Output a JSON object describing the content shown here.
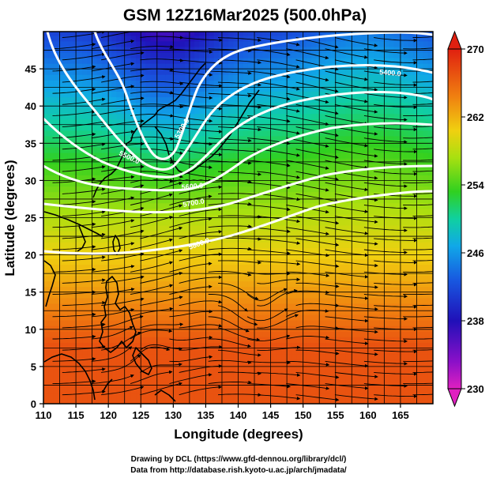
{
  "title": "GSM 12Z16Mar2025 (500.0hPa)",
  "credits": [
    "Drawing by DCL (https://www.gfd-dennou.org/library/dcl/)",
    "Data from http://database.rish.kyoto-u.ac.jp/arch/jmadata/"
  ],
  "map": {
    "xlabel": "Longitude (degrees)",
    "ylabel": "Latitude  (degrees)",
    "xlim": [
      110,
      170
    ],
    "ylim": [
      0,
      50
    ],
    "xticks": [
      110,
      115,
      120,
      125,
      130,
      135,
      140,
      145,
      150,
      155,
      160,
      165
    ],
    "yticks": [
      0,
      5,
      10,
      15,
      20,
      25,
      30,
      35,
      40,
      45
    ],
    "grid_step_deg": 2.5
  },
  "colorbar": {
    "min": 230,
    "max": 270,
    "ticks": [
      230,
      238,
      246,
      254,
      262,
      270
    ]
  },
  "contours": {
    "color": "#ffffff",
    "labels": [
      "5300.0",
      "5400.0",
      "5500.0",
      "5600.0",
      "5700.0",
      "5800.0"
    ]
  }
}
